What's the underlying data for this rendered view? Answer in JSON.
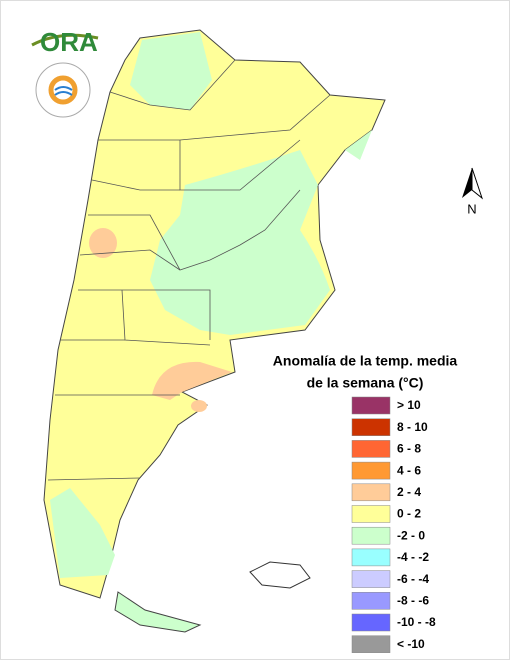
{
  "logo": {
    "text": "ORA"
  },
  "north_arrow": {
    "label": "N"
  },
  "legend": {
    "title": [
      "Anomalía de la temp. media",
      "de la semana (°C)"
    ],
    "items": [
      {
        "label": "> 10",
        "color": "#993366"
      },
      {
        "label": "8 - 10",
        "color": "#cc3300"
      },
      {
        "label": "6 - 8",
        "color": "#ff6633"
      },
      {
        "label": "4 - 6",
        "color": "#ff9933"
      },
      {
        "label": "2 - 4",
        "color": "#ffcc99"
      },
      {
        "label": "0 - 2",
        "color": "#ffff99"
      },
      {
        "label": "-2 - 0",
        "color": "#ccffcc"
      },
      {
        "label": "-4 - -2",
        "color": "#99ffff"
      },
      {
        "label": "-6 - -4",
        "color": "#ccccff"
      },
      {
        "label": "-8 - -6",
        "color": "#9999ff"
      },
      {
        "label": "-10 - -8",
        "color": "#6666ff"
      },
      {
        "label": "< -10",
        "color": "#999999"
      }
    ]
  }
}
